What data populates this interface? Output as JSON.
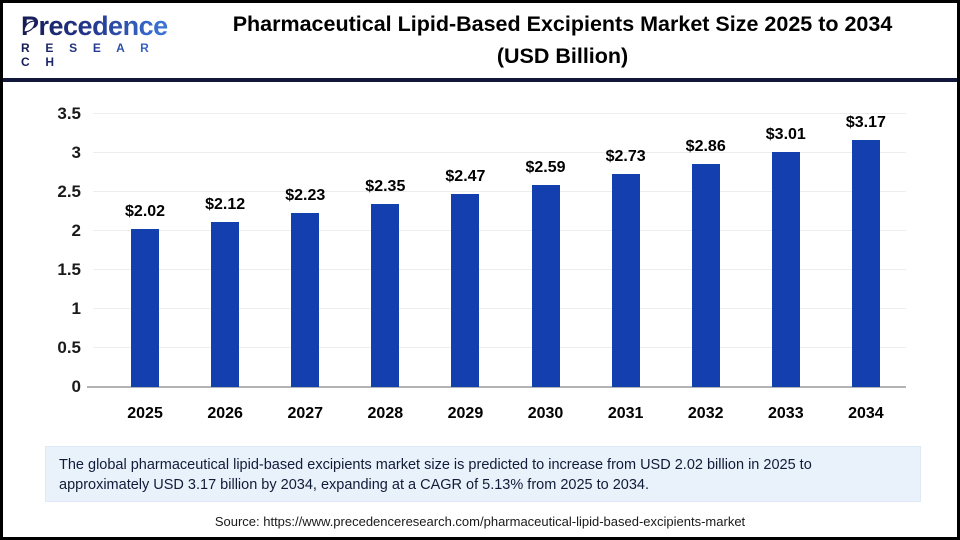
{
  "header": {
    "logo_brand": "Precedence",
    "logo_sub": "R E S E A R C H",
    "title_line1": "Pharmaceutical Lipid-Based Excipients Market Size 2025 to 2034",
    "title_line2": "(USD Billion)"
  },
  "chart_data": {
    "type": "bar",
    "title": "Pharmaceutical Lipid-Based Excipients Market Size 2025 to 2034 (USD Billion)",
    "categories": [
      "2025",
      "2026",
      "2027",
      "2028",
      "2029",
      "2030",
      "2031",
      "2032",
      "2033",
      "2034"
    ],
    "values": [
      2.02,
      2.12,
      2.23,
      2.35,
      2.47,
      2.59,
      2.73,
      2.86,
      3.01,
      3.17
    ],
    "bar_labels": [
      "$2.02",
      "$2.12",
      "$2.23",
      "$2.35",
      "$2.47",
      "$2.59",
      "$2.73",
      "$2.86",
      "$3.01",
      "$3.17"
    ],
    "unit": "USD Billion",
    "xlabel": "",
    "ylabel": "",
    "ylim": [
      0,
      3.5
    ],
    "yticks": [
      {
        "value": 0,
        "label": "0"
      },
      {
        "value": 0.5,
        "label": "0.5"
      },
      {
        "value": 1,
        "label": "1"
      },
      {
        "value": 1.5,
        "label": "1.5"
      },
      {
        "value": 2,
        "label": "2"
      },
      {
        "value": 2.5,
        "label": "2.5"
      },
      {
        "value": 3,
        "label": "3"
      },
      {
        "value": 3.5,
        "label": "3.5"
      }
    ],
    "grid": true,
    "legend": false,
    "bar_color": "#1440af"
  },
  "note": {
    "line1": "The global pharmaceutical lipid-based excipients market size is predicted to increase from USD 2.02 billion in 2025 to",
    "line2": "approximately USD 3.17 billion by 2034, expanding at a CAGR of 5.13% from 2025 to 2034."
  },
  "source": {
    "text": "Source: https://www.precedenceresearch.com/pharmaceutical-lipid-based-excipients-market"
  },
  "colors": {
    "bar": "#1440af",
    "header_rule": "#12163b",
    "note_background": "#e9f1fb",
    "baseline": "#b3b3b3",
    "gridline": "#ededed"
  }
}
